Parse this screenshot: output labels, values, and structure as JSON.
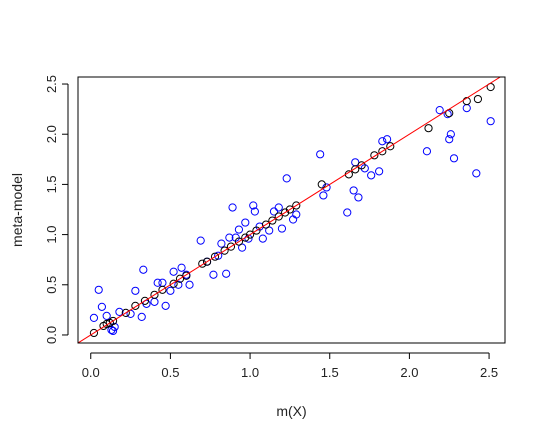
{
  "chart_data": {
    "type": "scatter",
    "xlabel": "m(X)",
    "ylabel": "meta-model",
    "xlim": [
      -0.08,
      2.6
    ],
    "ylim": [
      -0.08,
      2.57
    ],
    "x_ticks": [
      "0.0",
      "0.5",
      "1.0",
      "1.5",
      "2.0",
      "2.5"
    ],
    "y_ticks": [
      "0.0",
      "0.5",
      "1.0",
      "1.5",
      "2.0",
      "2.5"
    ],
    "grid": false,
    "reference_line": {
      "intercept": 0,
      "slope": 1,
      "color": "#ff0000"
    },
    "series": [
      {
        "color": "#000000",
        "points": [
          [
            0.02,
            0.02
          ],
          [
            0.08,
            0.09
          ],
          [
            0.1,
            0.11
          ],
          [
            0.12,
            0.12
          ],
          [
            0.14,
            0.14
          ],
          [
            0.22,
            0.22
          ],
          [
            0.28,
            0.29
          ],
          [
            0.34,
            0.34
          ],
          [
            0.4,
            0.4
          ],
          [
            0.45,
            0.45
          ],
          [
            0.52,
            0.51
          ],
          [
            0.56,
            0.56
          ],
          [
            0.6,
            0.59
          ],
          [
            0.7,
            0.71
          ],
          [
            0.73,
            0.73
          ],
          [
            0.78,
            0.78
          ],
          [
            0.84,
            0.84
          ],
          [
            0.88,
            0.88
          ],
          [
            0.93,
            0.93
          ],
          [
            0.97,
            0.97
          ],
          [
            1.0,
            1.0
          ],
          [
            1.04,
            1.04
          ],
          [
            1.1,
            1.1
          ],
          [
            1.14,
            1.14
          ],
          [
            1.18,
            1.18
          ],
          [
            1.22,
            1.22
          ],
          [
            1.25,
            1.25
          ],
          [
            1.29,
            1.29
          ],
          [
            1.45,
            1.5
          ],
          [
            1.62,
            1.6
          ],
          [
            1.66,
            1.65
          ],
          [
            1.7,
            1.69
          ],
          [
            1.78,
            1.79
          ],
          [
            1.83,
            1.83
          ],
          [
            1.88,
            1.88
          ],
          [
            2.12,
            2.06
          ],
          [
            2.25,
            2.21
          ],
          [
            2.36,
            2.33
          ],
          [
            2.43,
            2.35
          ],
          [
            2.51,
            2.47
          ]
        ]
      },
      {
        "color": "#0000ff",
        "points": [
          [
            0.02,
            0.17
          ],
          [
            0.05,
            0.45
          ],
          [
            0.07,
            0.28
          ],
          [
            0.1,
            0.19
          ],
          [
            0.13,
            0.05
          ],
          [
            0.14,
            0.04
          ],
          [
            0.15,
            0.08
          ],
          [
            0.18,
            0.23
          ],
          [
            0.25,
            0.21
          ],
          [
            0.28,
            0.44
          ],
          [
            0.32,
            0.18
          ],
          [
            0.33,
            0.65
          ],
          [
            0.35,
            0.31
          ],
          [
            0.4,
            0.33
          ],
          [
            0.42,
            0.52
          ],
          [
            0.45,
            0.52
          ],
          [
            0.47,
            0.29
          ],
          [
            0.5,
            0.44
          ],
          [
            0.52,
            0.63
          ],
          [
            0.55,
            0.5
          ],
          [
            0.57,
            0.67
          ],
          [
            0.6,
            0.6
          ],
          [
            0.62,
            0.5
          ],
          [
            0.69,
            0.94
          ],
          [
            0.73,
            0.73
          ],
          [
            0.77,
            0.6
          ],
          [
            0.8,
            0.79
          ],
          [
            0.82,
            0.91
          ],
          [
            0.85,
            0.61
          ],
          [
            0.87,
            0.97
          ],
          [
            0.89,
            1.27
          ],
          [
            0.91,
            0.97
          ],
          [
            0.93,
            1.05
          ],
          [
            0.95,
            0.87
          ],
          [
            0.97,
            1.12
          ],
          [
            0.99,
            0.96
          ],
          [
            1.02,
            1.29
          ],
          [
            1.03,
            1.23
          ],
          [
            1.06,
            1.08
          ],
          [
            1.08,
            0.96
          ],
          [
            1.12,
            1.04
          ],
          [
            1.15,
            1.23
          ],
          [
            1.18,
            1.27
          ],
          [
            1.2,
            1.06
          ],
          [
            1.23,
            1.56
          ],
          [
            1.27,
            1.15
          ],
          [
            1.29,
            1.2
          ],
          [
            1.44,
            1.8
          ],
          [
            1.46,
            1.39
          ],
          [
            1.48,
            1.47
          ],
          [
            1.61,
            1.22
          ],
          [
            1.65,
            1.44
          ],
          [
            1.66,
            1.72
          ],
          [
            1.68,
            1.37
          ],
          [
            1.72,
            1.66
          ],
          [
            1.76,
            1.59
          ],
          [
            1.81,
            1.63
          ],
          [
            1.83,
            1.93
          ],
          [
            1.86,
            1.95
          ],
          [
            2.11,
            1.83
          ],
          [
            2.19,
            2.24
          ],
          [
            2.24,
            2.2
          ],
          [
            2.25,
            1.95
          ],
          [
            2.26,
            2.0
          ],
          [
            2.28,
            1.76
          ],
          [
            2.36,
            2.26
          ],
          [
            2.42,
            1.61
          ],
          [
            2.51,
            2.13
          ]
        ]
      }
    ]
  }
}
